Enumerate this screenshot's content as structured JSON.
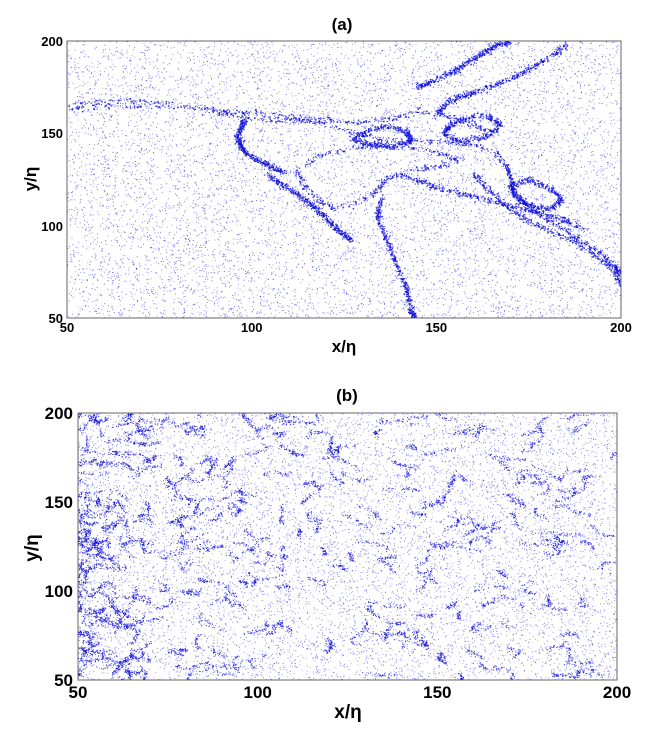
{
  "figure": {
    "point_color": "#1010d8"
  },
  "chart_data": [
    {
      "type": "scatter",
      "panel_label": "(a)",
      "xlabel": "x/η",
      "ylabel": "y/η",
      "xlim": [
        50,
        200
      ],
      "ylim": [
        50,
        200
      ],
      "xticks": [
        50,
        100,
        150,
        200
      ],
      "yticks": [
        50,
        100,
        150,
        200
      ],
      "grid": false,
      "pattern": "particles concentrated in thin folded filaments forming a large mixing structure",
      "filaments": [
        [
          [
            50,
            164
          ],
          [
            60,
            165
          ],
          [
            72,
            165
          ],
          [
            84,
            164
          ],
          [
            93,
            160
          ],
          [
            100,
            158
          ],
          [
            108,
            157
          ],
          [
            115,
            157
          ],
          [
            122,
            154
          ],
          [
            128,
            150
          ],
          [
            134,
            147
          ],
          [
            140,
            146
          ],
          [
            147,
            146
          ],
          [
            153,
            145
          ],
          [
            160,
            144
          ],
          [
            166,
            140
          ]
        ],
        [
          [
            50,
            166
          ],
          [
            66,
            168
          ],
          [
            80,
            166
          ],
          [
            92,
            162
          ],
          [
            101,
            161
          ],
          [
            110,
            159
          ],
          [
            119,
            158
          ],
          [
            128,
            156
          ],
          [
            137,
            158
          ],
          [
            145,
            162
          ],
          [
            152,
            160
          ],
          [
            160,
            155
          ],
          [
            165,
            150
          ]
        ],
        [
          [
            166,
            140
          ],
          [
            169,
            132
          ],
          [
            170,
            126
          ],
          [
            171,
            118
          ],
          [
            174,
            112
          ],
          [
            178,
            106
          ],
          [
            183,
            100
          ],
          [
            189,
            92
          ],
          [
            194,
            86
          ],
          [
            198,
            79
          ],
          [
            200,
            74
          ]
        ],
        [
          [
            160,
            128
          ],
          [
            164,
            120
          ],
          [
            168,
            112
          ],
          [
            173,
            105
          ],
          [
            180,
            98
          ],
          [
            187,
            92
          ],
          [
            193,
            84
          ],
          [
            198,
            76
          ],
          [
            200,
            68
          ]
        ],
        [
          [
            156,
            136
          ],
          [
            150,
            132
          ],
          [
            142,
            130
          ],
          [
            136,
            125
          ],
          [
            133,
            118
          ],
          [
            128,
            112
          ],
          [
            122,
            110
          ],
          [
            118,
            114
          ],
          [
            114,
            122
          ],
          [
            112,
            130
          ],
          [
            118,
            138
          ],
          [
            126,
            142
          ],
          [
            134,
            144
          ],
          [
            142,
            143
          ],
          [
            150,
            140
          ],
          [
            156,
            136
          ]
        ],
        [
          [
            140,
            128
          ],
          [
            146,
            124
          ],
          [
            152,
            120
          ],
          [
            160,
            116
          ],
          [
            168,
            112
          ],
          [
            176,
            108
          ],
          [
            184,
            104
          ],
          [
            190,
            98
          ]
        ],
        [
          [
            145,
            175
          ],
          [
            148,
            178
          ],
          [
            153,
            182
          ],
          [
            158,
            188
          ],
          [
            162,
            193
          ],
          [
            166,
            198
          ],
          [
            170,
            200
          ]
        ],
        [
          [
            150,
            160
          ],
          [
            152,
            166
          ],
          [
            156,
            170
          ],
          [
            161,
            173
          ],
          [
            166,
            177
          ],
          [
            171,
            181
          ],
          [
            176,
            186
          ],
          [
            181,
            192
          ],
          [
            185,
            198
          ]
        ],
        [
          [
            135,
            115
          ],
          [
            134,
            105
          ],
          [
            136,
            95
          ],
          [
            138,
            85
          ],
          [
            140,
            75
          ],
          [
            142,
            65
          ],
          [
            143,
            55
          ],
          [
            144,
            50
          ]
        ],
        [
          [
            104,
            128
          ],
          [
            111,
            119
          ],
          [
            117,
            110
          ],
          [
            122,
            100
          ],
          [
            127,
            92
          ]
        ],
        [
          [
            98,
            158
          ],
          [
            96,
            148
          ],
          [
            98,
            140
          ],
          [
            103,
            134
          ],
          [
            109,
            129
          ]
        ],
        [
          [
            152,
            150
          ],
          [
            156,
            146
          ],
          [
            162,
            148
          ],
          [
            166,
            152
          ],
          [
            167,
            156
          ],
          [
            163,
            160
          ],
          [
            157,
            158
          ],
          [
            153,
            154
          ],
          [
            152,
            150
          ]
        ],
        [
          [
            127,
            147
          ],
          [
            131,
            152
          ],
          [
            137,
            154
          ],
          [
            142,
            151
          ],
          [
            143,
            146
          ],
          [
            138,
            143
          ],
          [
            132,
            144
          ],
          [
            127,
            147
          ]
        ],
        [
          [
            170,
            122
          ],
          [
            175,
            125
          ],
          [
            181,
            120
          ],
          [
            184,
            114
          ],
          [
            180,
            109
          ],
          [
            174,
            112
          ],
          [
            171,
            117
          ],
          [
            170,
            122
          ]
        ]
      ],
      "background_points": 9000,
      "filament_points": 7000
    },
    {
      "type": "scatter",
      "panel_label": "(b)",
      "xlabel": "x/η",
      "ylabel": "y/η",
      "xlim": [
        50,
        200
      ],
      "ylim": [
        50,
        200
      ],
      "xticks": [
        50,
        100,
        150,
        200
      ],
      "yticks": [
        50,
        100,
        150,
        200
      ],
      "grid": false,
      "pattern": "particles in a cellular network of short clusters, denser toward low x",
      "background_points": 10000,
      "cluster_segments": 360,
      "cluster_points": 12000,
      "density_bias_low_x": 2.0
    }
  ]
}
